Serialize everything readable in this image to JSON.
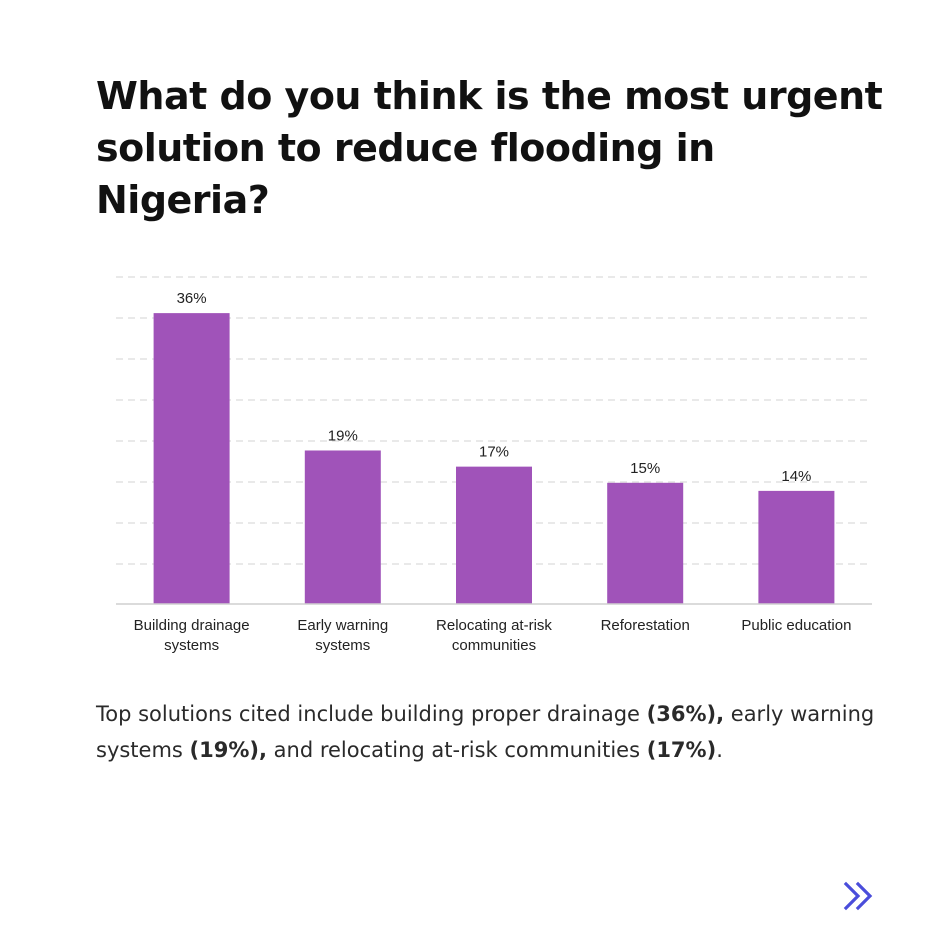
{
  "title": "What do you think is the most urgent solution to reduce flooding in Nigeria?",
  "caption": {
    "part1": "Top solutions cited include building proper drainage ",
    "bold1": "(36%),",
    "part2": " early warning systems ",
    "bold2": "(19%),",
    "part3": " and relocating at-risk communities ",
    "bold3": "(17%)",
    "part4": "."
  },
  "next_icon": "double-chevron-right-icon",
  "colors": {
    "bar": "#a053b9",
    "accent": "#4a4ddb",
    "grid": "#dcdcdc"
  },
  "chart_data": {
    "type": "bar",
    "categories": [
      [
        "Building drainage",
        "systems"
      ],
      [
        "Early warning",
        "systems"
      ],
      [
        "Relocating at-risk",
        "communities"
      ],
      [
        "Reforestation"
      ],
      [
        "Public education"
      ]
    ],
    "values": [
      36,
      19,
      17,
      15,
      14
    ],
    "labels": [
      "36%",
      "19%",
      "17%",
      "15%",
      "14%"
    ],
    "ylim": [
      0,
      40
    ],
    "grid": true,
    "legend": "none"
  }
}
